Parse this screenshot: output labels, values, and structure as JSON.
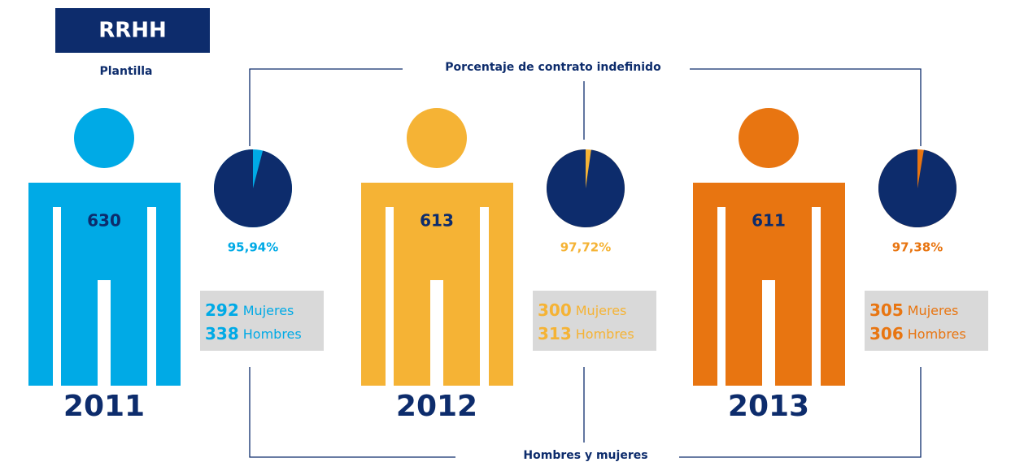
{
  "header": {
    "title": "RRHH",
    "subtitle": "Plantilla"
  },
  "labels": {
    "contract": "Porcentaje de contrato indefinido",
    "gender": "Hombres y mujeres"
  },
  "years": [
    {
      "year": "2011",
      "total": 630,
      "percent": 95.94,
      "percent_label": "95,94%",
      "women": 292,
      "women_label": "Mujeres",
      "men": 338,
      "men_label": "Hombres",
      "color": "#00aae6"
    },
    {
      "year": "2012",
      "total": 613,
      "percent": 97.72,
      "percent_label": "97,72%",
      "women": 300,
      "women_label": "Mujeres",
      "men": 313,
      "men_label": "Hombres",
      "color": "#f5b335"
    },
    {
      "year": "2013",
      "total": 611,
      "percent": 97.38,
      "percent_label": "97,38%",
      "women": 305,
      "women_label": "Mujeres",
      "men": 306,
      "men_label": "Hombres",
      "color": "#e87511"
    }
  ]
}
